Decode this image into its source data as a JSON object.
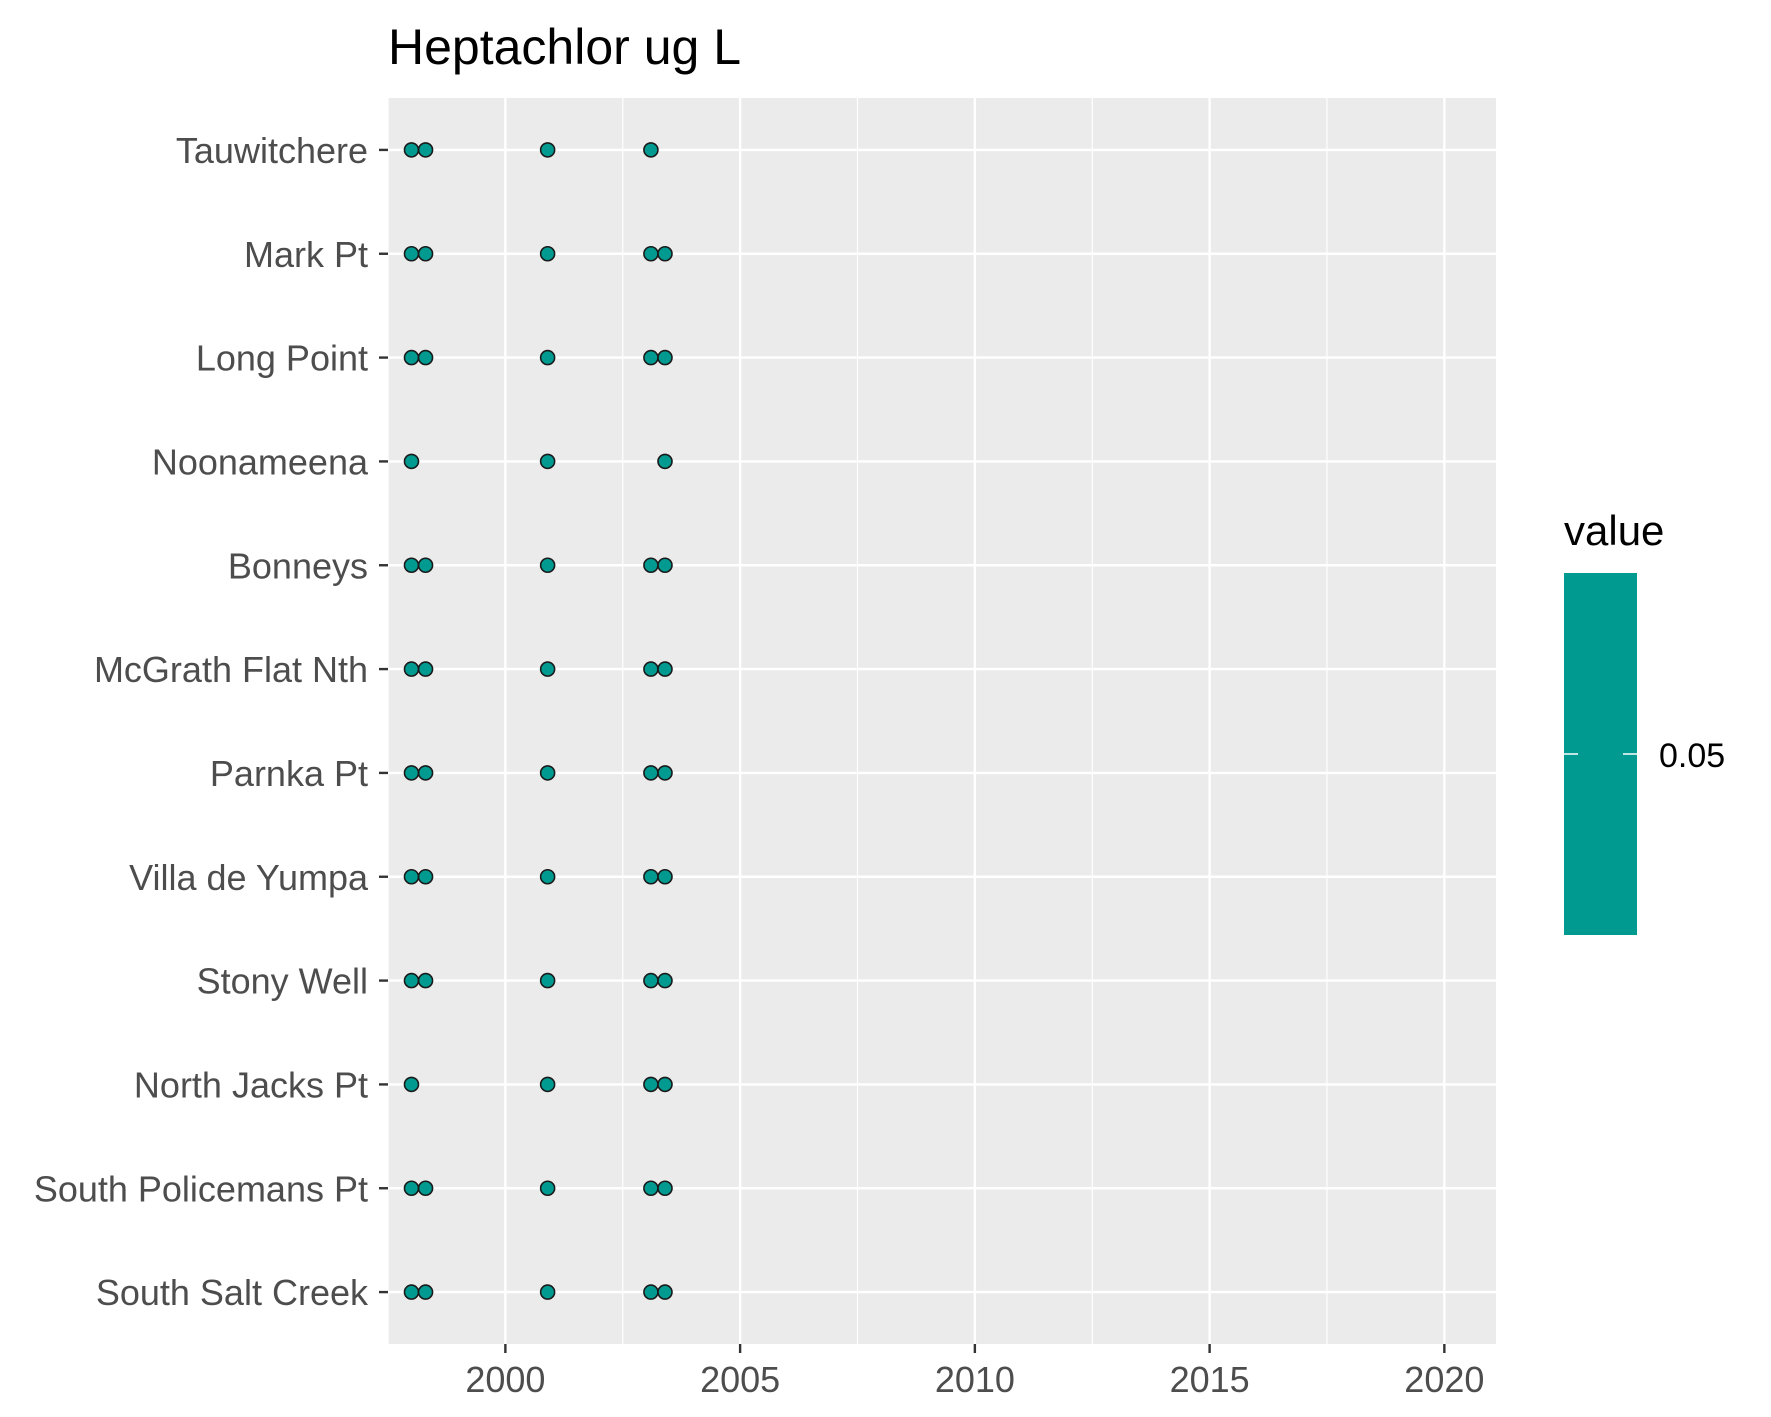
{
  "chart_data": {
    "type": "scatter",
    "title": "Heptachlor ug L",
    "xlabel": "",
    "ylabel": "",
    "xlim": [
      1997.5,
      2021.1
    ],
    "x_ticks": [
      2000,
      2005,
      2010,
      2015,
      2020
    ],
    "x_tick_labels": [
      "2000",
      "2005",
      "2010",
      "2015",
      "2020"
    ],
    "categories": [
      "Tauwitchere",
      "Mark Pt",
      "Long Point",
      "Noonameena",
      "Bonneys",
      "McGrath Flat Nth",
      "Parnka Pt",
      "Villa de Yumpa",
      "Stony Well",
      "North Jacks Pt",
      "South Policemans Pt",
      "South Salt Creek"
    ],
    "grid": true,
    "legend_position": "right",
    "points": [
      {
        "site": "Tauwitchere",
        "x": [
          1998.0,
          1998.3,
          2000.9,
          2003.1
        ]
      },
      {
        "site": "Mark Pt",
        "x": [
          1998.0,
          1998.3,
          2000.9,
          2003.1,
          2003.4
        ]
      },
      {
        "site": "Long Point",
        "x": [
          1998.0,
          1998.3,
          2000.9,
          2003.1,
          2003.4
        ]
      },
      {
        "site": "Noonameena",
        "x": [
          1998.0,
          2000.9,
          2003.4
        ]
      },
      {
        "site": "Bonneys",
        "x": [
          1998.0,
          1998.3,
          2000.9,
          2003.1,
          2003.4
        ]
      },
      {
        "site": "McGrath Flat Nth",
        "x": [
          1998.0,
          1998.3,
          2000.9,
          2003.1,
          2003.4
        ]
      },
      {
        "site": "Parnka Pt",
        "x": [
          1998.0,
          1998.3,
          2000.9,
          2003.1,
          2003.4
        ]
      },
      {
        "site": "Villa de Yumpa",
        "x": [
          1998.0,
          1998.3,
          2000.9,
          2003.1,
          2003.4
        ]
      },
      {
        "site": "Stony Well",
        "x": [
          1998.0,
          1998.3,
          2000.9,
          2003.1,
          2003.4
        ]
      },
      {
        "site": "North Jacks Pt",
        "x": [
          1998.0,
          2000.9,
          2003.1,
          2003.4
        ]
      },
      {
        "site": "South Policemans Pt",
        "x": [
          1998.0,
          1998.3,
          2000.9,
          2003.1,
          2003.4
        ]
      },
      {
        "site": "South Salt Creek",
        "x": [
          1998.0,
          1998.3,
          2000.9,
          2003.1,
          2003.4
        ]
      }
    ],
    "value": 0.05,
    "legend": {
      "title": "value",
      "label": "0.05",
      "color": "#009a91"
    },
    "colors": {
      "point_fill": "#009a91",
      "point_stroke": "#1a1a1a",
      "panel_bg": "#ebebeb",
      "grid": "#ffffff"
    }
  }
}
